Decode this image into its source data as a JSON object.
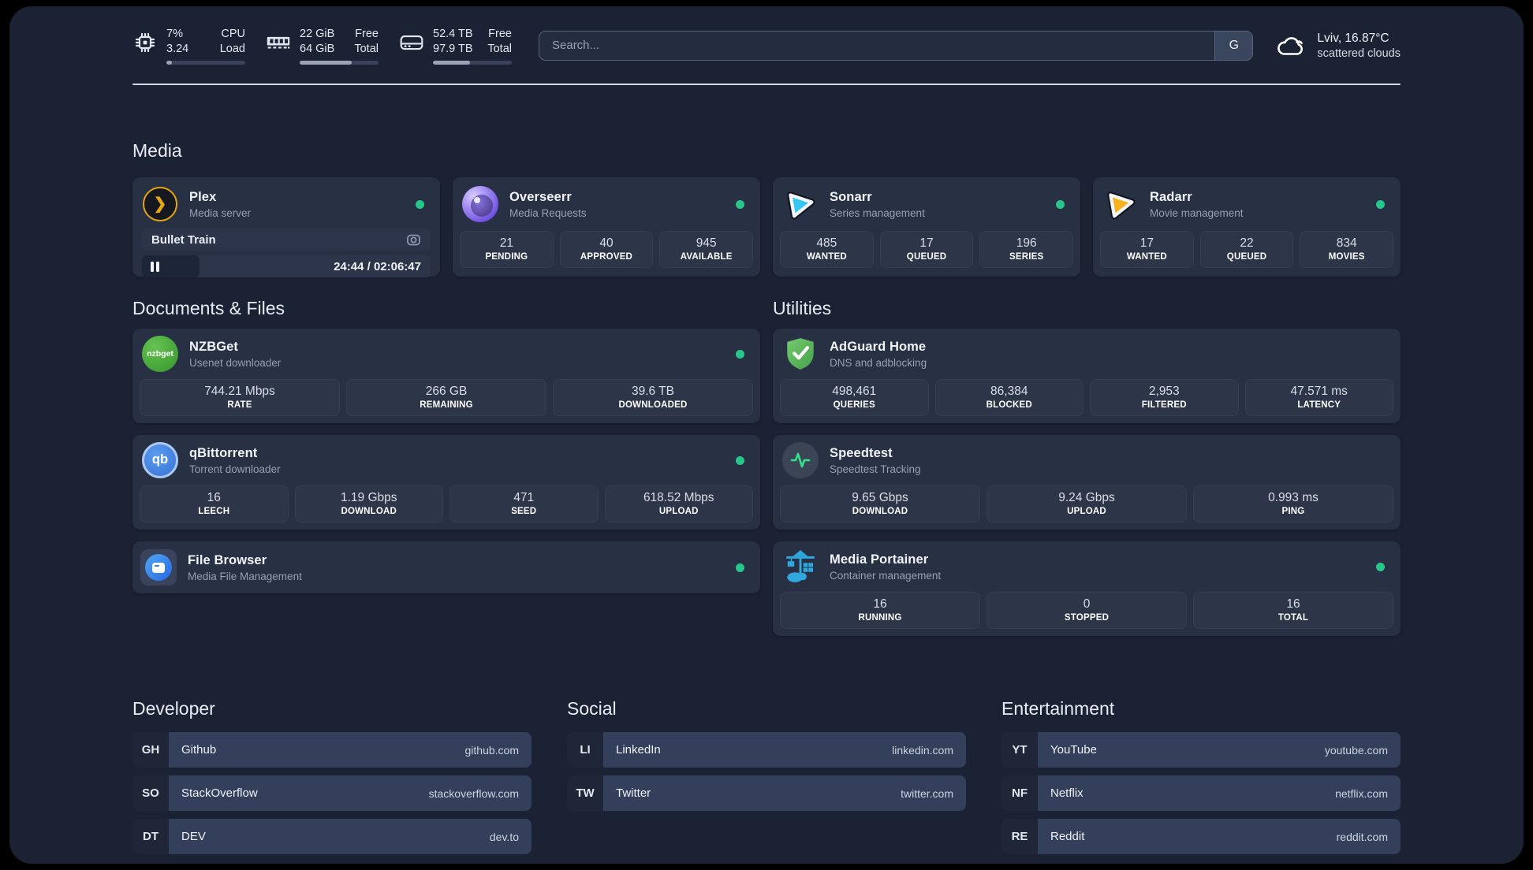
{
  "header": {
    "metrics": [
      {
        "icon": "cpu-icon",
        "val1": "7%",
        "val2": "3.24",
        "label1": "CPU",
        "label2": "Load",
        "progress_pct": 7
      },
      {
        "icon": "ram-icon",
        "val1": "22 GiB",
        "val2": "64 GiB",
        "label1": "Free",
        "label2": "Total",
        "progress_pct": 66
      },
      {
        "icon": "disk-icon",
        "val1": "52.4 TB",
        "val2": "97.9 TB",
        "label1": "Free",
        "label2": "Total",
        "progress_pct": 47
      }
    ],
    "search": {
      "placeholder": "Search...",
      "provider_button": "G"
    },
    "weather": {
      "icon": "cloud-icon",
      "location": "Lviv, 16.87°C",
      "condition": "scattered clouds"
    }
  },
  "sections": {
    "media": {
      "title": "Media",
      "apps": [
        {
          "name": "Plex",
          "subtitle": "Media server",
          "icon": "plex-logo",
          "online": true,
          "now_playing": {
            "title": "Bullet Train",
            "time": "24:44 / 02:06:47",
            "progress_pct": 20
          }
        },
        {
          "name": "Overseerr",
          "subtitle": "Media Requests",
          "icon": "overseerr-logo",
          "online": true,
          "stats": [
            {
              "value": "21",
              "label": "PENDING"
            },
            {
              "value": "40",
              "label": "APPROVED"
            },
            {
              "value": "945",
              "label": "AVAILABLE"
            }
          ]
        },
        {
          "name": "Sonarr",
          "subtitle": "Series management",
          "icon": "sonarr-logo",
          "online": true,
          "stats": [
            {
              "value": "485",
              "label": "WANTED"
            },
            {
              "value": "17",
              "label": "QUEUED"
            },
            {
              "value": "196",
              "label": "SERIES"
            }
          ]
        },
        {
          "name": "Radarr",
          "subtitle": "Movie management",
          "icon": "radarr-logo",
          "online": true,
          "stats": [
            {
              "value": "17",
              "label": "WANTED"
            },
            {
              "value": "22",
              "label": "QUEUED"
            },
            {
              "value": "834",
              "label": "MOVIES"
            }
          ]
        }
      ]
    },
    "documents": {
      "title": "Documents & Files",
      "apps": [
        {
          "name": "NZBGet",
          "subtitle": "Usenet downloader",
          "icon": "nzbget-logo",
          "logo_text": "nzbget",
          "online": true,
          "stats": [
            {
              "value": "744.21 Mbps",
              "label": "RATE"
            },
            {
              "value": "266 GB",
              "label": "REMAINING"
            },
            {
              "value": "39.6 TB",
              "label": "DOWNLOADED"
            }
          ]
        },
        {
          "name": "qBittorrent",
          "subtitle": "Torrent downloader",
          "icon": "qbittorrent-logo",
          "logo_text": "qb",
          "online": true,
          "stats": [
            {
              "value": "16",
              "label": "LEECH"
            },
            {
              "value": "1.19 Gbps",
              "label": "DOWNLOAD"
            },
            {
              "value": "471",
              "label": "SEED"
            },
            {
              "value": "618.52 Mbps",
              "label": "UPLOAD"
            }
          ]
        },
        {
          "name": "File Browser",
          "subtitle": "Media File Management",
          "icon": "filebrowser-logo",
          "online": true
        }
      ]
    },
    "utilities": {
      "title": "Utilities",
      "apps": [
        {
          "name": "AdGuard Home",
          "subtitle": "DNS and adblocking",
          "icon": "adguard-logo",
          "stats": [
            {
              "value": "498,461",
              "label": "QUERIES"
            },
            {
              "value": "86,384",
              "label": "BLOCKED"
            },
            {
              "value": "2,953",
              "label": "FILTERED"
            },
            {
              "value": "47.571 ms",
              "label": "LATENCY"
            }
          ]
        },
        {
          "name": "Speedtest",
          "subtitle": "Speedtest Tracking",
          "icon": "speedtest-logo",
          "stats": [
            {
              "value": "9.65 Gbps",
              "label": "DOWNLOAD"
            },
            {
              "value": "9.24 Gbps",
              "label": "UPLOAD"
            },
            {
              "value": "0.993 ms",
              "label": "PING"
            }
          ]
        },
        {
          "name": "Media Portainer",
          "subtitle": "Container management",
          "icon": "portainer-logo",
          "online": true,
          "stats": [
            {
              "value": "16",
              "label": "RUNNING"
            },
            {
              "value": "0",
              "label": "STOPPED"
            },
            {
              "value": "16",
              "label": "TOTAL"
            }
          ]
        }
      ]
    },
    "developer": {
      "title": "Developer",
      "links": [
        {
          "badge": "GH",
          "name": "Github",
          "url": "github.com"
        },
        {
          "badge": "SO",
          "name": "StackOverflow",
          "url": "stackoverflow.com"
        },
        {
          "badge": "DT",
          "name": "DEV",
          "url": "dev.to"
        }
      ]
    },
    "social": {
      "title": "Social",
      "links": [
        {
          "badge": "LI",
          "name": "LinkedIn",
          "url": "linkedin.com"
        },
        {
          "badge": "TW",
          "name": "Twitter",
          "url": "twitter.com"
        }
      ]
    },
    "entertainment": {
      "title": "Entertainment",
      "links": [
        {
          "badge": "YT",
          "name": "YouTube",
          "url": "youtube.com"
        },
        {
          "badge": "NF",
          "name": "Netflix",
          "url": "netflix.com"
        },
        {
          "badge": "RE",
          "name": "Reddit",
          "url": "reddit.com"
        }
      ]
    }
  },
  "colors": {
    "status_online": "#27c78c",
    "panel_bg": "#1b2234",
    "card_bg": "#283043",
    "plex_accent": "#e7a510",
    "sonarr_accent": "#38c6f4",
    "radarr_accent": "#f8b21d"
  }
}
